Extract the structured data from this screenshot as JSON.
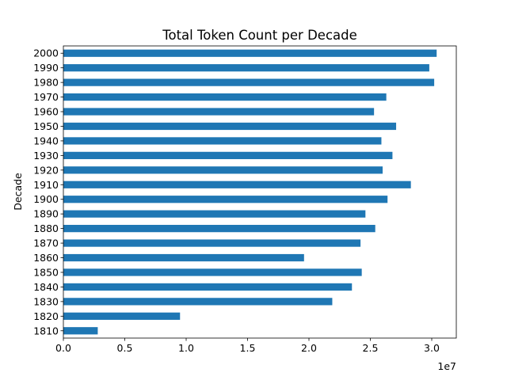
{
  "chart_data": {
    "type": "bar",
    "orientation": "horizontal",
    "title": "Total Token Count per Decade",
    "xlabel": "",
    "ylabel": "Decade",
    "x_offset_label": "1e7",
    "xlim": [
      0,
      32000000
    ],
    "xticks": [
      0,
      5000000,
      10000000,
      15000000,
      20000000,
      25000000,
      30000000
    ],
    "xtick_labels": [
      "0.0",
      "0.5",
      "1.0",
      "1.5",
      "2.0",
      "2.5",
      "3.0"
    ],
    "grid": false,
    "legend": "none",
    "bar_color": "#1f77b4",
    "categories": [
      "1810",
      "1820",
      "1830",
      "1840",
      "1850",
      "1860",
      "1870",
      "1880",
      "1890",
      "1900",
      "1910",
      "1920",
      "1930",
      "1940",
      "1950",
      "1960",
      "1970",
      "1980",
      "1990",
      "2000"
    ],
    "values": [
      2800000,
      9500000,
      21900000,
      23500000,
      24300000,
      19600000,
      24200000,
      25400000,
      24600000,
      26400000,
      28300000,
      26000000,
      26800000,
      25900000,
      27100000,
      25300000,
      26300000,
      30200000,
      29800000,
      30400000
    ]
  }
}
